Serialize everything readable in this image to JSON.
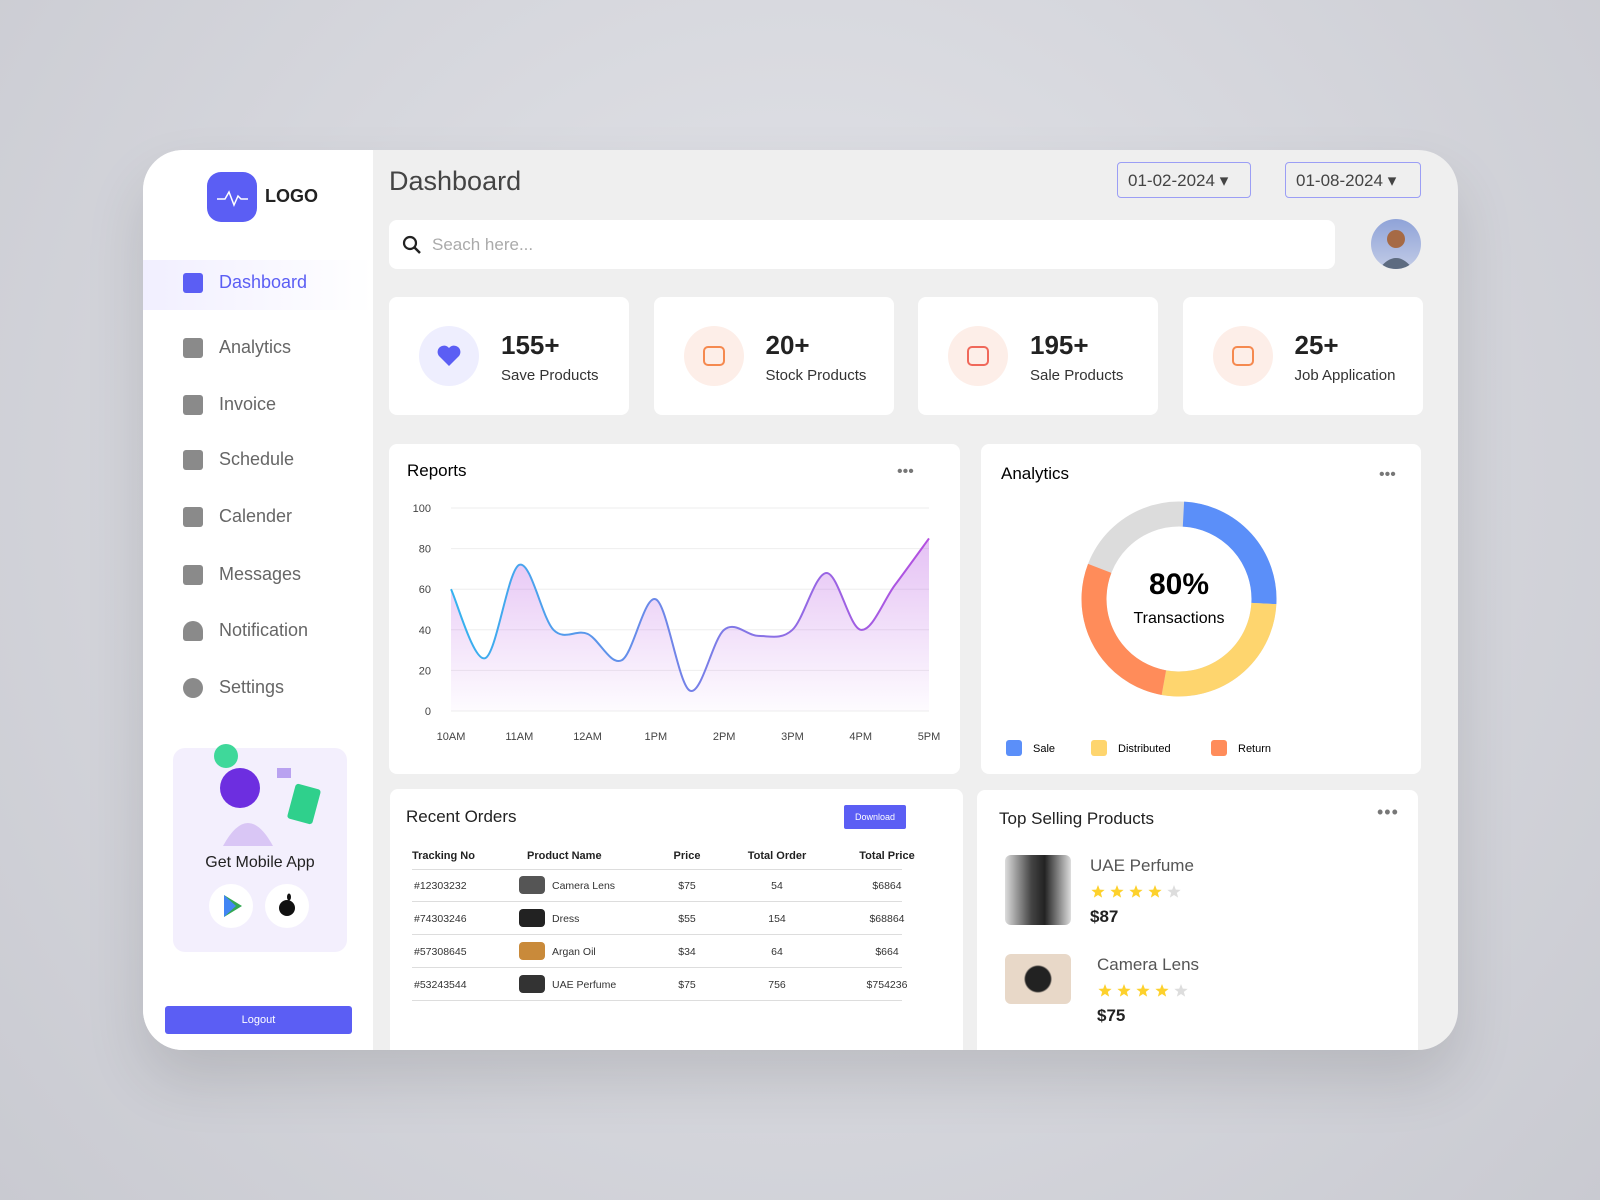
{
  "logo": "LOGO",
  "nav": [
    "Dashboard",
    "Analytics",
    "Invoice",
    "Schedule",
    "Calender",
    "Messages",
    "Notification",
    "Settings"
  ],
  "promo": {
    "title": "Get Mobile App"
  },
  "logout": "Logout",
  "header": {
    "title": "Dashboard",
    "date_from": "01-02-2024",
    "date_to": "01-08-2024",
    "search_placeholder": "Seach here..."
  },
  "stats": [
    {
      "value": "155+",
      "label": "Save Products"
    },
    {
      "value": "20+",
      "label": "Stock Products"
    },
    {
      "value": "195+",
      "label": "Sale Products"
    },
    {
      "value": "25+",
      "label": "Job Application"
    }
  ],
  "chart_data": [
    {
      "type": "line",
      "title": "Reports",
      "categories": [
        "10AM",
        null,
        "11AM",
        null,
        "12AM",
        null,
        "1PM",
        null,
        "2PM",
        null,
        "3PM",
        null,
        "4PM",
        null,
        "5PM"
      ],
      "values": [
        60,
        26,
        72,
        40,
        38,
        25,
        55,
        10,
        40,
        37,
        40,
        68,
        40,
        62,
        85
      ],
      "colors": [
        "#35b3ef",
        "#b44fe0"
      ],
      "ylim": [
        0,
        100
      ],
      "yticks": [
        0,
        20,
        40,
        60,
        80,
        100
      ],
      "grid": true
    },
    {
      "type": "donut",
      "title": "Analytics",
      "center_value": "80%",
      "center_label": "Transactions",
      "series": [
        {
          "name": "Sale",
          "color": "#5b8ff9",
          "values": [
            25
          ]
        },
        {
          "name": "Distributed",
          "color": "#fed56e",
          "values": [
            27
          ]
        },
        {
          "name": "Return",
          "color": "#ff8c5a",
          "values": [
            28
          ]
        }
      ]
    }
  ],
  "orders": {
    "title": "Recent Orders",
    "button": "Download",
    "columns": [
      "Tracking No",
      "Product Name",
      "Price",
      "Total Order",
      "Total Price"
    ],
    "rows": [
      [
        "#12303232",
        "Camera Lens",
        "$75",
        54,
        "$6864"
      ],
      [
        "#74303246",
        "Dress",
        "$55",
        154,
        "$68864"
      ],
      [
        "#57308645",
        "Argan Oil",
        "$34",
        64,
        "$664"
      ],
      [
        "#53243544",
        "UAE Perfume",
        "$75",
        756,
        "$754236"
      ]
    ]
  },
  "top_products": {
    "title": "Top Selling Products",
    "items": [
      {
        "name": "UAE Perfume",
        "rating": 4,
        "rating_out_of": 5,
        "price": "$87"
      },
      {
        "name": "Camera Lens",
        "rating": 4,
        "rating_out_of": 5,
        "price": "$75"
      }
    ]
  }
}
